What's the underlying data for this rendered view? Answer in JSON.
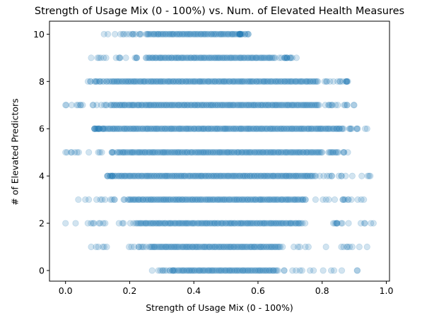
{
  "chart_data": {
    "type": "scatter",
    "title": "Strength of Usage Mix (0 - 100%) vs. Num. of Elevated Health Measures",
    "xlabel": "Strength of Usage Mix (0 - 100%)",
    "ylabel": "# of Elevated Predictors",
    "xlim": [
      -0.05,
      1.01
    ],
    "ylim": [
      -0.45,
      10.55
    ],
    "xticks": [
      0.0,
      0.2,
      0.4,
      0.6,
      0.8,
      1.0
    ],
    "xtick_labels": [
      "0.0",
      "0.2",
      "0.4",
      "0.6",
      "0.8",
      "1.0"
    ],
    "yticks": [
      0,
      2,
      4,
      6,
      8,
      10
    ],
    "ytick_labels": [
      "0",
      "2",
      "4",
      "6",
      "8",
      "10"
    ],
    "grid": false,
    "marker_color": "#1f77b4",
    "marker_alpha": 0.2,
    "rows": [
      {
        "y": 0,
        "dense_range": [
          0.35,
          0.66
        ],
        "span": [
          0.27,
          0.91
        ]
      },
      {
        "y": 1,
        "dense_range": [
          0.26,
          0.67
        ],
        "span": [
          0.08,
          0.94
        ]
      },
      {
        "y": 2,
        "dense_range": [
          0.22,
          0.74
        ],
        "span": [
          0.0,
          0.96
        ]
      },
      {
        "y": 3,
        "dense_range": [
          0.2,
          0.75
        ],
        "span": [
          0.04,
          0.93
        ]
      },
      {
        "y": 4,
        "dense_range": [
          0.17,
          0.78
        ],
        "span": [
          0.13,
          0.95
        ]
      },
      {
        "y": 5,
        "dense_range": [
          0.16,
          0.8
        ],
        "span": [
          0.0,
          0.88
        ]
      },
      {
        "y": 6,
        "dense_range": [
          0.12,
          0.85
        ],
        "span": [
          0.09,
          0.94
        ]
      },
      {
        "y": 7,
        "dense_range": [
          0.14,
          0.79
        ],
        "span": [
          0.0,
          0.9
        ]
      },
      {
        "y": 8,
        "dense_range": [
          0.14,
          0.79
        ],
        "span": [
          0.07,
          0.88
        ]
      },
      {
        "y": 9,
        "dense_range": [
          0.25,
          0.65
        ],
        "span": [
          0.08,
          0.72
        ]
      },
      {
        "y": 10,
        "dense_range": [
          0.25,
          0.54
        ],
        "span": [
          0.12,
          0.57
        ]
      }
    ]
  }
}
